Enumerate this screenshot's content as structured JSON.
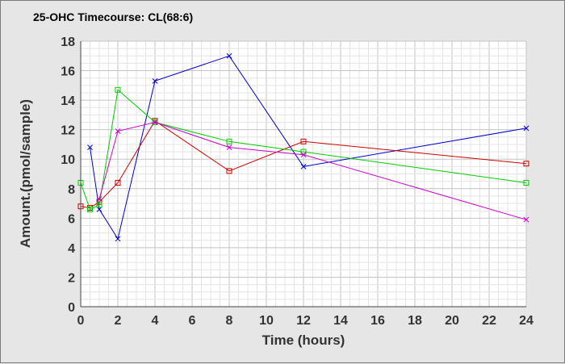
{
  "chart_data": {
    "type": "line",
    "title": "25-OHC Timecourse: CL(68:6)",
    "xlabel": "Time (hours)",
    "ylabel": "Amount.(pmol/sample)",
    "xlim": [
      0,
      24
    ],
    "ylim": [
      0,
      18
    ],
    "xticks": [
      0,
      2,
      4,
      6,
      8,
      10,
      12,
      14,
      16,
      18,
      20,
      22,
      24
    ],
    "yticks": [
      0,
      2,
      4,
      6,
      8,
      10,
      12,
      14,
      16,
      18
    ],
    "grid": true,
    "series": [
      {
        "color": "#0000cc",
        "marker": "x",
        "x": [
          0.5,
          1,
          2,
          4,
          8,
          12,
          24
        ],
        "y": [
          10.8,
          6.6,
          4.6,
          15.3,
          17.0,
          9.5,
          12.1
        ]
      },
      {
        "color": "#cc0000",
        "marker": "square",
        "x": [
          0,
          0.5,
          1,
          2,
          4,
          8,
          12,
          24
        ],
        "y": [
          6.8,
          6.7,
          7.1,
          8.4,
          12.6,
          9.2,
          11.2,
          9.7
        ]
      },
      {
        "color": "#00cc00",
        "marker": "square",
        "x": [
          0,
          0.5,
          1,
          2,
          4,
          8,
          12,
          24
        ],
        "y": [
          8.4,
          6.6,
          6.9,
          14.7,
          12.5,
          11.2,
          10.5,
          8.4
        ]
      },
      {
        "color": "#cc00cc",
        "marker": "x",
        "x": [
          1,
          2,
          4,
          8,
          12,
          24
        ],
        "y": [
          7.3,
          11.9,
          12.5,
          10.8,
          10.3,
          5.9
        ]
      }
    ]
  }
}
